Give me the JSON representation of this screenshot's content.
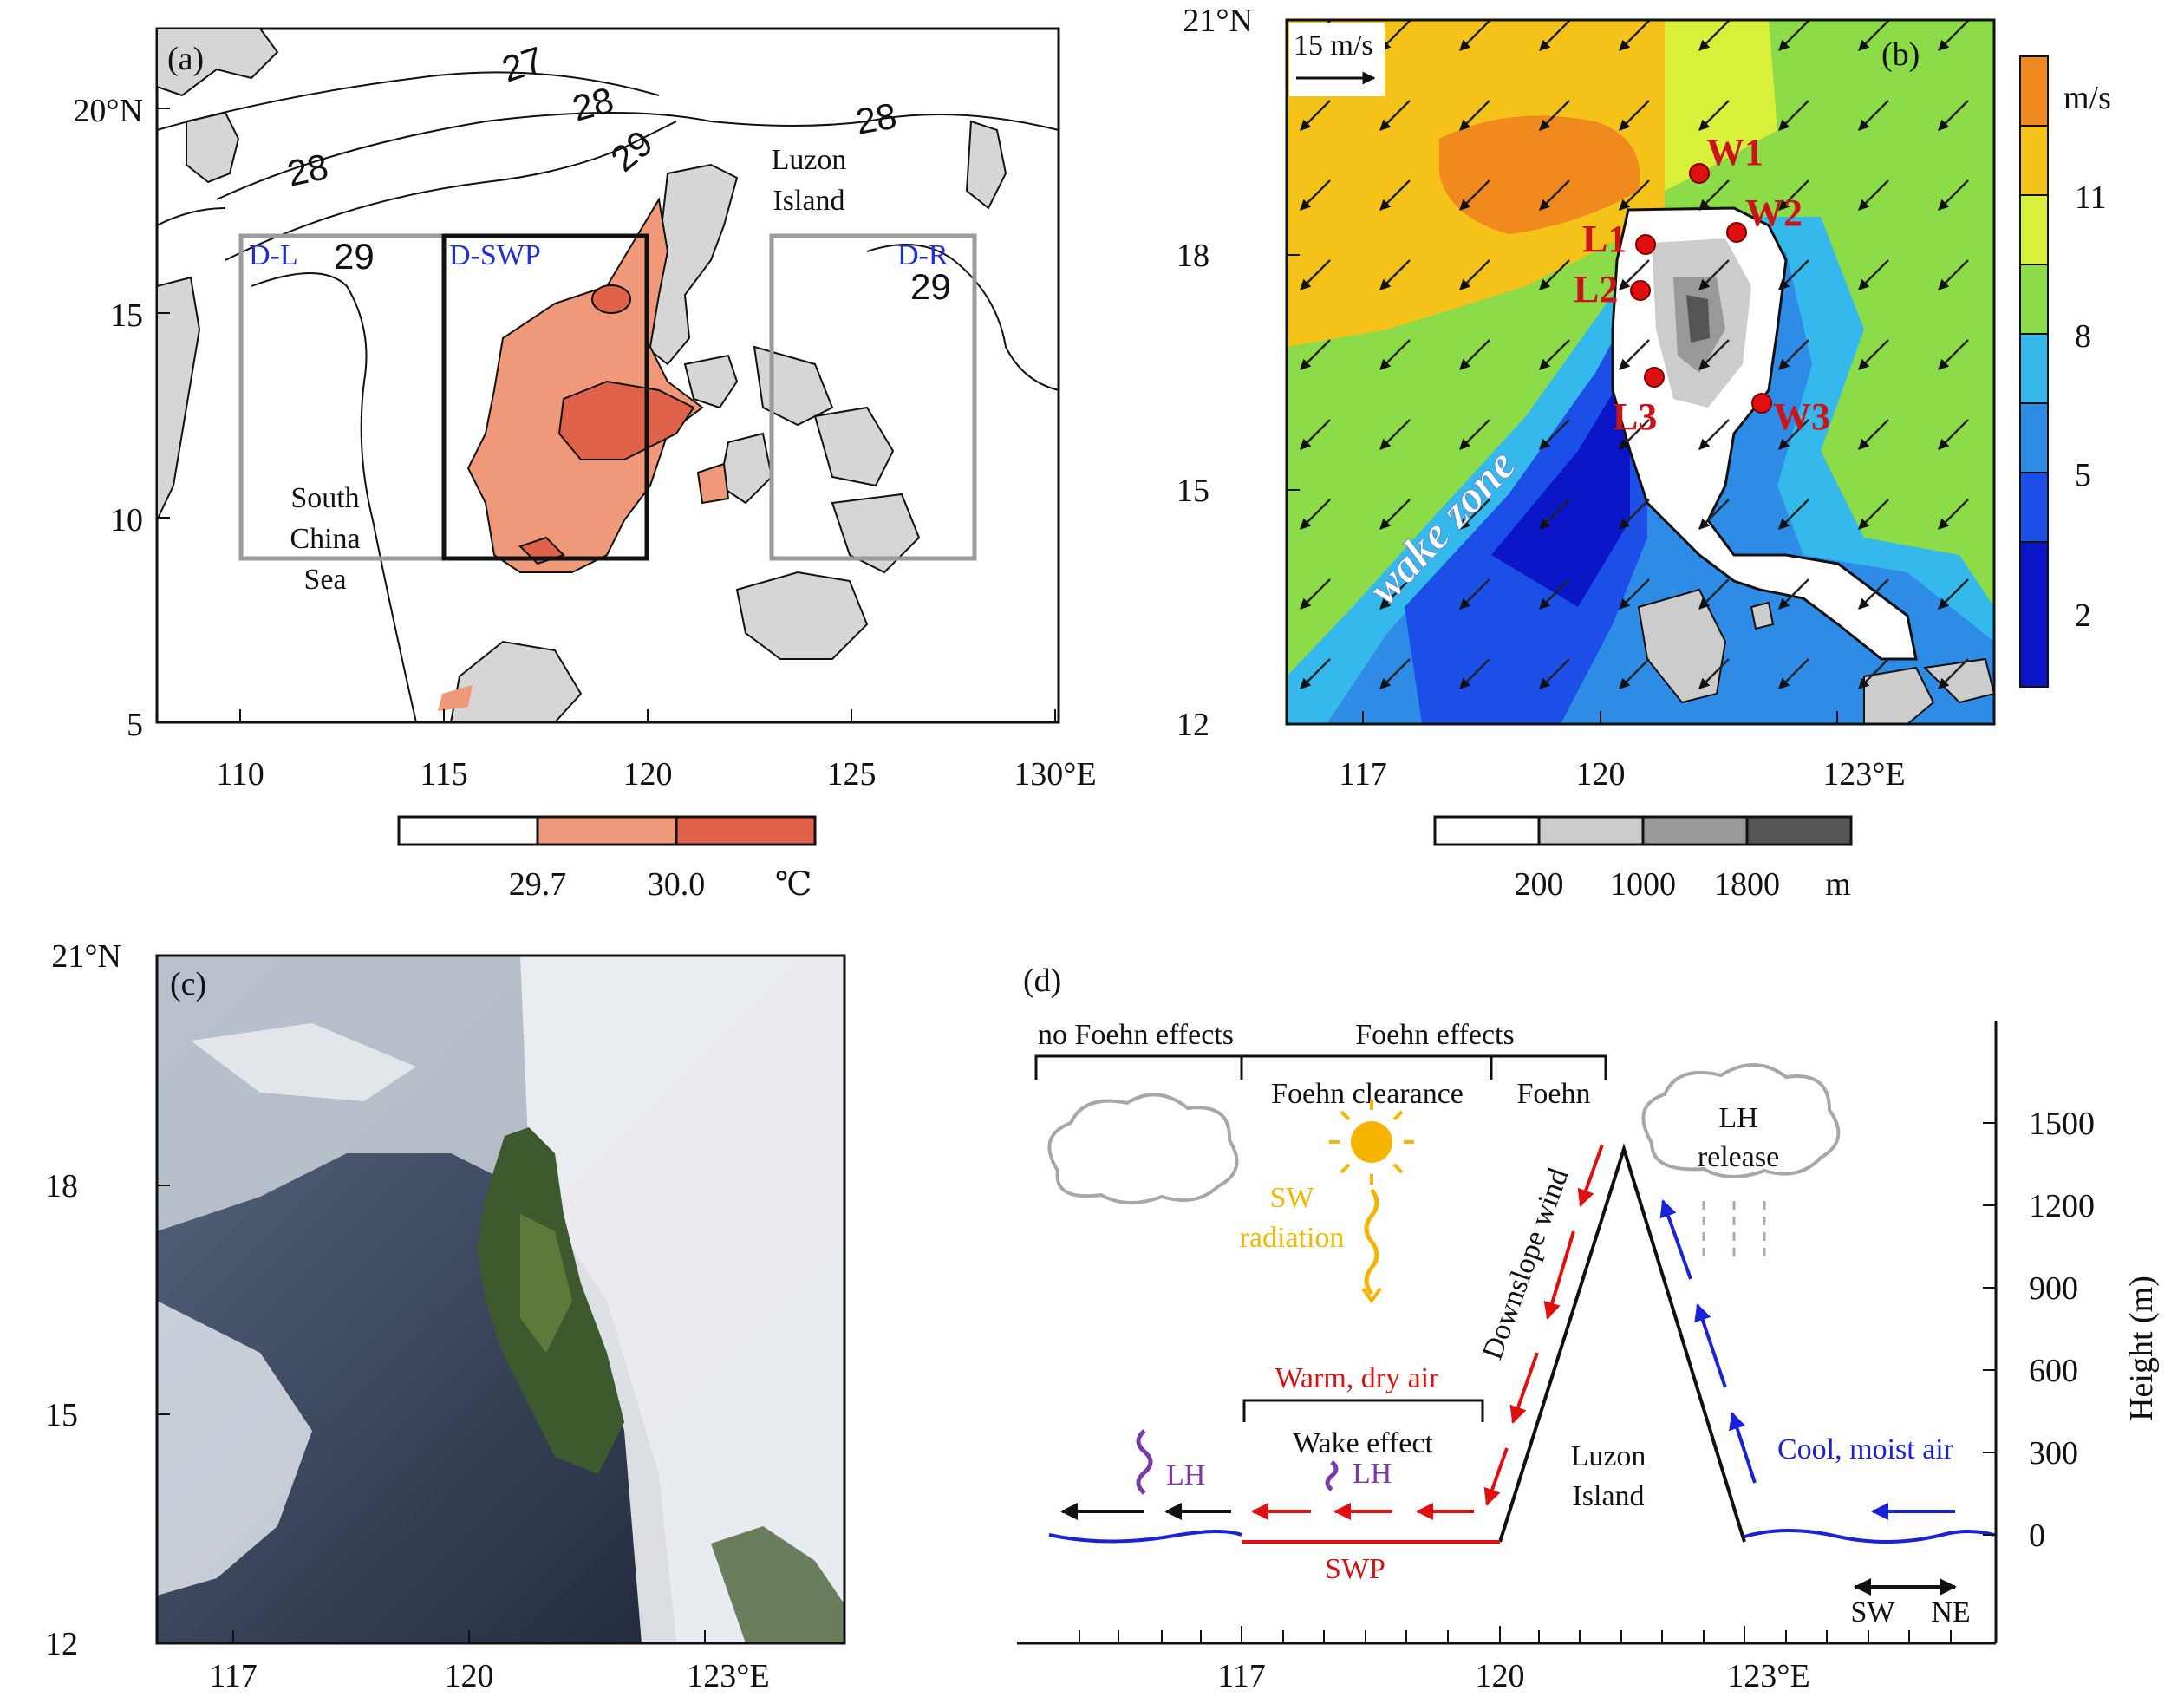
{
  "panel_a": {
    "label": "(a)",
    "yticks": [
      "5",
      "10",
      "15",
      "20°N"
    ],
    "xticks": [
      "110",
      "115",
      "120",
      "125",
      "130°E"
    ],
    "contours": [
      "27",
      "28",
      "28",
      "28",
      "29",
      "29",
      "29"
    ],
    "boxes": {
      "left": "D-L",
      "center": "D-SWP",
      "right": "D-R"
    },
    "sea_label": [
      "South",
      "China",
      "Sea"
    ],
    "island_label": [
      "Luzon",
      "Island"
    ],
    "colorbar": {
      "ticks": [
        "29.7",
        "30.0"
      ],
      "unit": "℃",
      "colors": [
        "#ffffff",
        "#f0997a",
        "#e0624a"
      ]
    }
  },
  "panel_b": {
    "label": "(b)",
    "ref_vector": "15 m/s",
    "yticks": [
      "12",
      "15",
      "18",
      "21°N"
    ],
    "xticks": [
      "117",
      "120",
      "123°E"
    ],
    "stations": [
      "W1",
      "W2",
      "W3",
      "L1",
      "L2",
      "L3"
    ],
    "zone_label": "wake zone",
    "wind_colorbar": {
      "unit": "m/s",
      "ticks": [
        "2",
        "5",
        "8",
        "11"
      ],
      "colors": [
        "#0a16c8",
        "#1c4ee8",
        "#2e8be6",
        "#35b8ec",
        "#8cdc4a",
        "#d8f03a",
        "#f5c21a",
        "#f08a1e"
      ]
    },
    "terrain_colorbar": {
      "ticks": [
        "200",
        "1000",
        "1800"
      ],
      "unit": "m",
      "colors": [
        "#ffffff",
        "#cccccc",
        "#999999",
        "#555555"
      ]
    }
  },
  "panel_c": {
    "label": "(c)",
    "yticks": [
      "12",
      "15",
      "18",
      "21°N"
    ],
    "xticks": [
      "117",
      "120",
      "123°E"
    ]
  },
  "panel_d": {
    "label": "(d)",
    "header_left": "no Foehn effects",
    "header_right": "Foehn effects",
    "sub_clearance": "Foehn clearance",
    "sub_foehn": "Foehn",
    "sw_radiation": [
      "SW",
      "radiation"
    ],
    "lh_release": [
      "LH",
      "release"
    ],
    "downslope": "Downslope wind",
    "warm_dry": "Warm, dry air",
    "wake_effect": "Wake effect",
    "lh": "LH",
    "luzon": [
      "Luzon",
      "Island"
    ],
    "cool_moist": "Cool, moist air",
    "swp": "SWP",
    "direction": [
      "SW",
      "NE"
    ],
    "height_label": "Height (m)",
    "yticks": [
      "0",
      "300",
      "600",
      "900",
      "1200",
      "1500"
    ],
    "xticks": [
      "117",
      "120",
      "123°E"
    ]
  }
}
